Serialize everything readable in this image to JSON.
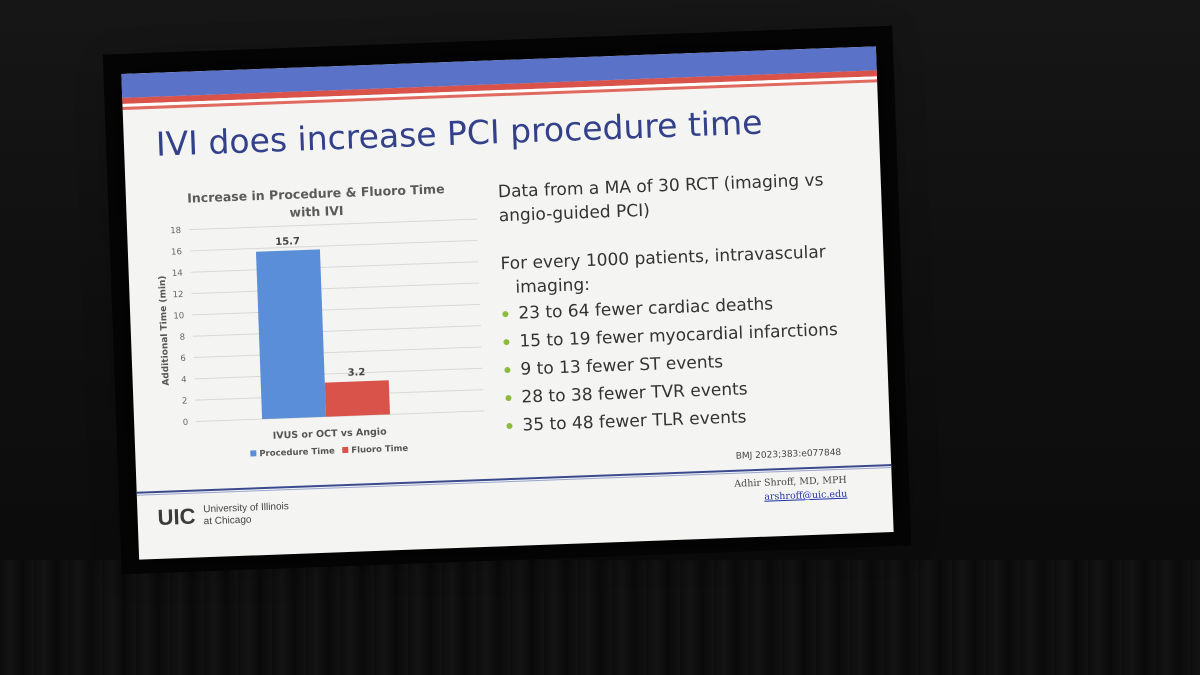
{
  "slide": {
    "title": "IVI does increase PCI procedure time",
    "intro": "Data from a MA of 30 RCT (imaging vs angio-guided PCI)",
    "lead": "For every 1000 patients, intravascular",
    "lead_cont": "imaging:",
    "bullets": [
      "23 to 64 fewer cardiac deaths",
      "15 to 19 fewer myocardial infarctions",
      "9 to 13 fewer ST events",
      "28 to 38 fewer TVR events",
      "35 to 48 fewer TLR events"
    ],
    "citation": "BMJ 2023;383:e077848",
    "institution_mark": "UIC",
    "institution_line1": "University of Illinois",
    "institution_line2": "at Chicago",
    "presenter_name": "Adhir Shroff, MD, MPH",
    "presenter_email": "arshroff@uic.edu"
  },
  "colors": {
    "band_blue": "#5b72c9",
    "band_red": "#d9534a",
    "title": "#33408a",
    "procedure_bar": "#5b8ed8",
    "fluoro_bar": "#d9534a",
    "bullet": "#8dbb3f"
  },
  "chart_data": {
    "type": "bar",
    "title_line1": "Increase in Procedure & Fluoro Time",
    "title_line2": "with IVI",
    "categories": [
      "IVUS or OCT vs Angio"
    ],
    "series": [
      {
        "name": "Procedure Time",
        "values": [
          15.7
        ],
        "label": "15.7"
      },
      {
        "name": "Fluoro Time",
        "values": [
          3.2
        ],
        "label": "3.2"
      }
    ],
    "ylabel": "Additional Time (min)",
    "ylim": [
      0,
      18
    ],
    "yticks": [
      "0",
      "2",
      "4",
      "6",
      "8",
      "10",
      "12",
      "14",
      "16",
      "18"
    ],
    "grid": true,
    "legend": "bottom"
  }
}
